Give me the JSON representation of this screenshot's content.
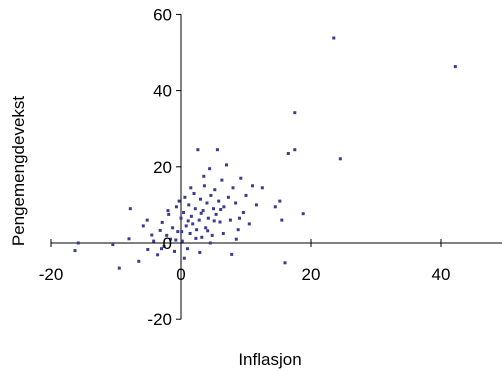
{
  "chart_data": {
    "type": "scatter",
    "title": "",
    "xlabel": "Inflasjon",
    "ylabel": "Pengemengdevekst",
    "xlim": [
      -20,
      50
    ],
    "ylim": [
      -20,
      60
    ],
    "x_ticks": [
      -20,
      0,
      20,
      40
    ],
    "y_ticks": [
      -20,
      0,
      20,
      40,
      60
    ],
    "x_tick_labels": [
      "-20",
      "0",
      "20",
      "40"
    ],
    "y_tick_labels": [
      "-20",
      "0",
      "20",
      "40",
      "60"
    ],
    "grid": false,
    "legend": "none",
    "marker_color": "#3b3b8f",
    "series": [
      {
        "points": [
          [
            23.5,
            53.8
          ],
          [
            42.2,
            46.3
          ],
          [
            17.5,
            34.2
          ],
          [
            17.5,
            24.5
          ],
          [
            16.5,
            23.5
          ],
          [
            24.5,
            22.1
          ],
          [
            18.8,
            7.7
          ],
          [
            15.5,
            6.0
          ],
          [
            16.0,
            -5.2
          ],
          [
            -15.8,
            0.0
          ],
          [
            -16.3,
            -2.0
          ],
          [
            -10.5,
            -0.4
          ],
          [
            -9.5,
            -6.6
          ],
          [
            -8.0,
            1.1
          ],
          [
            -7.8,
            9.0
          ],
          [
            -6.5,
            -4.8
          ],
          [
            -5.8,
            4.5
          ],
          [
            -5.2,
            6.0
          ],
          [
            -5.1,
            -1.7
          ],
          [
            -4.5,
            2.1
          ],
          [
            -4.2,
            0.5
          ],
          [
            -3.6,
            -3.1
          ],
          [
            -3.2,
            3.3
          ],
          [
            -2.9,
            5.4
          ],
          [
            -2.6,
            -0.9
          ],
          [
            -2.2,
            2.0
          ],
          [
            -1.9,
            7.5
          ],
          [
            -1.6,
            1.0
          ],
          [
            -1.3,
            4.0
          ],
          [
            -1.0,
            -2.2
          ],
          [
            -0.7,
            9.5
          ],
          [
            -0.5,
            3.0
          ],
          [
            -0.3,
            11.0
          ],
          [
            0.0,
            6.5
          ],
          [
            0.2,
            0.5
          ],
          [
            0.4,
            8.0
          ],
          [
            0.6,
            12.0
          ],
          [
            0.8,
            4.5
          ],
          [
            1.0,
            -1.5
          ],
          [
            1.2,
            10.0
          ],
          [
            1.4,
            2.5
          ],
          [
            1.6,
            7.0
          ],
          [
            1.8,
            5.0
          ],
          [
            2.0,
            13.0
          ],
          [
            2.2,
            9.0
          ],
          [
            2.4,
            3.5
          ],
          [
            2.6,
            24.5
          ],
          [
            2.8,
            6.0
          ],
          [
            3.0,
            11.5
          ],
          [
            3.2,
            1.5
          ],
          [
            3.4,
            8.5
          ],
          [
            3.6,
            15.0
          ],
          [
            3.8,
            4.0
          ],
          [
            4.0,
            10.5
          ],
          [
            4.2,
            6.5
          ],
          [
            4.4,
            19.5
          ],
          [
            4.6,
            12.5
          ],
          [
            4.8,
            2.0
          ],
          [
            5.0,
            9.0
          ],
          [
            5.2,
            14.0
          ],
          [
            5.4,
            7.5
          ],
          [
            5.6,
            24.5
          ],
          [
            5.8,
            11.0
          ],
          [
            6.0,
            5.5
          ],
          [
            6.3,
            16.5
          ],
          [
            6.6,
            9.5
          ],
          [
            7.0,
            20.5
          ],
          [
            7.3,
            12.0
          ],
          [
            7.6,
            6.0
          ],
          [
            8.0,
            14.5
          ],
          [
            8.4,
            10.5
          ],
          [
            8.8,
            3.5
          ],
          [
            9.2,
            17.0
          ],
          [
            9.6,
            8.0
          ],
          [
            10.0,
            12.5
          ],
          [
            10.5,
            5.0
          ],
          [
            11.0,
            15.0
          ],
          [
            11.6,
            10.0
          ],
          [
            12.5,
            14.5
          ],
          [
            14.5,
            9.5
          ],
          [
            15.2,
            11.0
          ],
          [
            -3.0,
            -1.5
          ],
          [
            -2.0,
            8.5
          ],
          [
            0.5,
            -4.0
          ],
          [
            1.5,
            14.5
          ],
          [
            2.9,
            -2.5
          ],
          [
            3.5,
            17.5
          ],
          [
            4.5,
            0.0
          ],
          [
            6.5,
            2.5
          ],
          [
            7.8,
            -3.0
          ],
          [
            8.5,
            1.0
          ],
          [
            9.0,
            6.5
          ],
          [
            0.1,
            3.0
          ],
          [
            -0.8,
            0.8
          ],
          [
            1.1,
            5.8
          ],
          [
            2.3,
            1.2
          ],
          [
            3.1,
            7.8
          ],
          [
            4.1,
            3.2
          ],
          [
            5.1,
            5.8
          ],
          [
            6.1,
            8.8
          ]
        ]
      }
    ]
  }
}
